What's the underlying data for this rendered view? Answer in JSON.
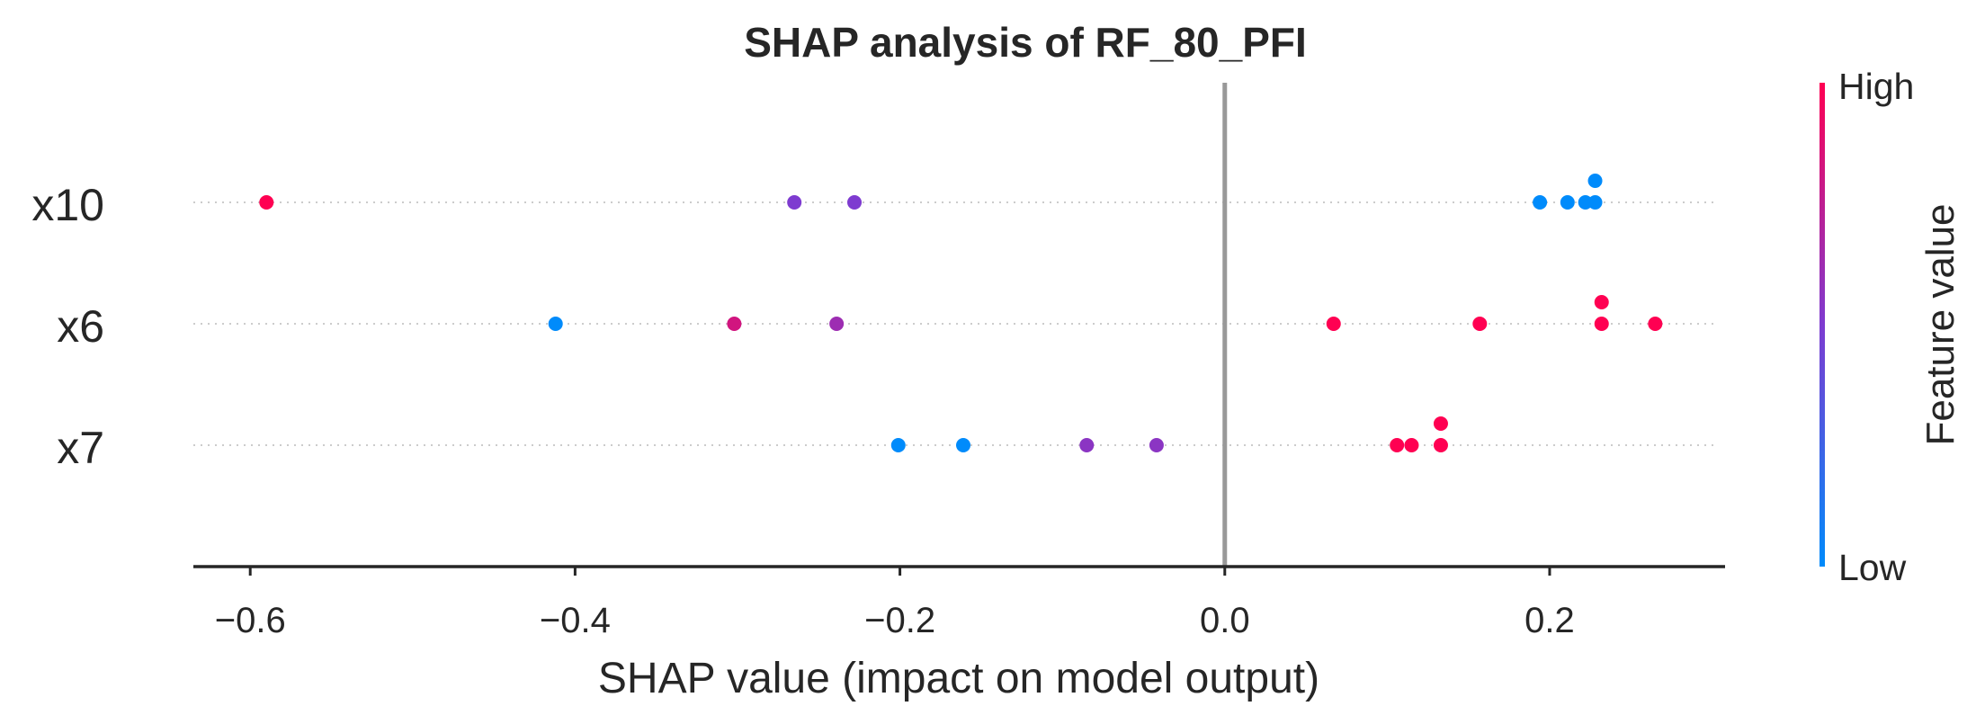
{
  "chart_data": {
    "type": "scatter",
    "title": "SHAP analysis of RF_80_PFI",
    "xlabel": "SHAP value (impact on model output)",
    "ylabel": "",
    "xlim": [
      -0.635,
      0.308
    ],
    "xticks": [
      -0.6,
      -0.4,
      -0.2,
      0.0,
      0.2
    ],
    "xtick_labels": [
      "−0.6",
      "−0.4",
      "−0.2",
      "0.0",
      "0.2"
    ],
    "zero_line": 0.0,
    "features": [
      "x10",
      "x6",
      "x7"
    ],
    "series": [
      {
        "feature": "x10",
        "points": [
          {
            "x": -0.59,
            "v": 1.0,
            "jitter": 0
          },
          {
            "x": -0.265,
            "v": 0.5,
            "jitter": 0
          },
          {
            "x": -0.228,
            "v": 0.5,
            "jitter": 0
          },
          {
            "x": 0.194,
            "v": 0.0,
            "jitter": 0
          },
          {
            "x": 0.211,
            "v": 0.0,
            "jitter": 0
          },
          {
            "x": 0.222,
            "v": 0.0,
            "jitter": 0
          },
          {
            "x": 0.228,
            "v": 0.0,
            "jitter": 0
          },
          {
            "x": 0.228,
            "v": 0.0,
            "jitter": 1
          }
        ]
      },
      {
        "feature": "x6",
        "points": [
          {
            "x": -0.412,
            "v": 0.0,
            "jitter": 0
          },
          {
            "x": -0.302,
            "v": 0.82,
            "jitter": 0
          },
          {
            "x": -0.239,
            "v": 0.62,
            "jitter": 0
          },
          {
            "x": 0.067,
            "v": 1.0,
            "jitter": 0
          },
          {
            "x": 0.157,
            "v": 1.0,
            "jitter": 0
          },
          {
            "x": 0.232,
            "v": 1.0,
            "jitter": 0
          },
          {
            "x": 0.232,
            "v": 1.0,
            "jitter": 1
          },
          {
            "x": 0.265,
            "v": 1.0,
            "jitter": 0
          }
        ]
      },
      {
        "feature": "x7",
        "points": [
          {
            "x": -0.201,
            "v": 0.0,
            "jitter": 0
          },
          {
            "x": -0.161,
            "v": 0.0,
            "jitter": 0
          },
          {
            "x": -0.085,
            "v": 0.55,
            "jitter": 0
          },
          {
            "x": -0.042,
            "v": 0.55,
            "jitter": 0
          },
          {
            "x": 0.106,
            "v": 1.0,
            "jitter": 0
          },
          {
            "x": 0.115,
            "v": 1.0,
            "jitter": 0
          },
          {
            "x": 0.133,
            "v": 1.0,
            "jitter": 0
          },
          {
            "x": 0.133,
            "v": 1.0,
            "jitter": 1
          }
        ]
      }
    ],
    "colorbar": {
      "title": "Feature value",
      "high_label": "High",
      "low_label": "Low",
      "low_color": "#008bfb",
      "mid_color": "#7e3bd0",
      "high_color": "#ff0052"
    },
    "grid": false,
    "legend": "colorbar-right"
  }
}
